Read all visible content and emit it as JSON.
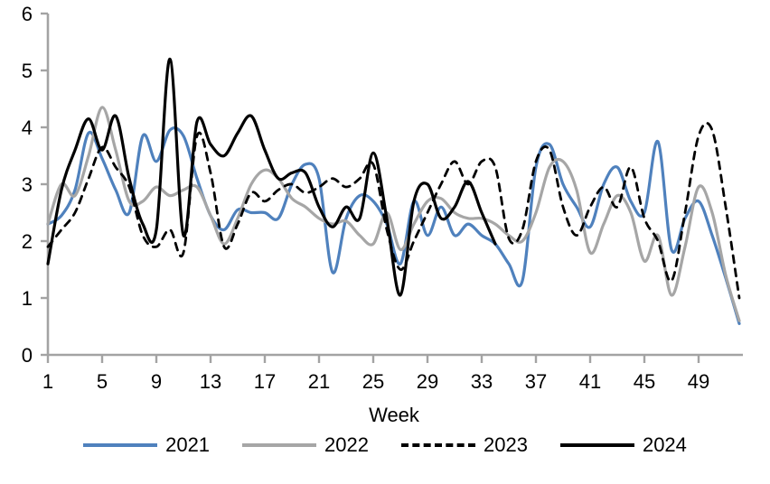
{
  "chart_data": {
    "type": "line",
    "title": "",
    "xlabel": "Week",
    "ylabel": "",
    "xlim": [
      1,
      52
    ],
    "ylim": [
      0,
      6
    ],
    "x_ticks": [
      1,
      5,
      9,
      13,
      17,
      21,
      25,
      29,
      33,
      37,
      41,
      45,
      49
    ],
    "y_ticks": [
      0,
      1,
      2,
      3,
      4,
      5,
      6
    ],
    "grid": false,
    "legend_position": "bottom",
    "axis_color": "#a3a3a3",
    "text_color": "#000000",
    "x_unit": "week number, weekly values; series values start at week 1",
    "series": [
      {
        "name": "2021",
        "color": "#4f81bd",
        "style": "solid",
        "values": [
          2.3,
          2.45,
          2.9,
          3.9,
          3.45,
          2.9,
          2.5,
          3.85,
          3.4,
          3.95,
          3.85,
          3.1,
          2.45,
          2.2,
          2.55,
          2.5,
          2.5,
          2.4,
          3.0,
          3.35,
          3.1,
          1.45,
          2.4,
          2.8,
          2.7,
          2.3,
          1.6,
          2.7,
          2.1,
          2.6,
          2.1,
          2.3,
          2.1,
          1.95,
          1.6,
          1.3,
          3.3,
          3.7,
          3.0,
          2.6,
          2.25,
          3.0,
          3.3,
          2.7,
          2.5,
          3.75,
          1.85,
          2.4,
          2.7,
          2.1,
          1.35,
          0.55
        ]
      },
      {
        "name": "2022",
        "color": "#a6a6a6",
        "style": "solid",
        "values": [
          2.3,
          3.0,
          2.8,
          3.5,
          4.35,
          3.6,
          2.7,
          2.7,
          2.95,
          2.8,
          2.9,
          2.95,
          2.45,
          1.95,
          2.4,
          3.0,
          3.25,
          3.1,
          2.75,
          2.6,
          2.4,
          2.3,
          2.35,
          2.1,
          1.95,
          2.5,
          1.85,
          2.3,
          2.7,
          2.75,
          2.5,
          2.4,
          2.4,
          2.3,
          2.1,
          2.0,
          2.5,
          3.3,
          3.4,
          2.9,
          1.8,
          2.3,
          2.8,
          2.5,
          1.65,
          2.1,
          1.05,
          1.9,
          2.95,
          2.5,
          1.4,
          0.6
        ]
      },
      {
        "name": "2023",
        "color": "#000000",
        "style": "dashed",
        "values": [
          1.9,
          2.2,
          2.5,
          3.1,
          3.65,
          3.3,
          2.95,
          2.1,
          1.9,
          2.2,
          1.8,
          3.85,
          3.2,
          1.9,
          2.3,
          2.85,
          2.7,
          2.9,
          3.0,
          2.85,
          2.95,
          3.1,
          2.95,
          3.1,
          3.35,
          2.2,
          1.5,
          2.0,
          2.5,
          3.0,
          3.4,
          3.0,
          3.4,
          3.3,
          2.05,
          2.2,
          3.4,
          3.6,
          2.6,
          2.1,
          2.6,
          2.95,
          2.6,
          3.3,
          2.4,
          2.0,
          1.3,
          2.5,
          3.85,
          3.95,
          2.6,
          1.0
        ]
      },
      {
        "name": "2024",
        "color": "#000000",
        "style": "solid",
        "values": [
          1.6,
          2.9,
          3.6,
          4.15,
          3.6,
          4.2,
          3.1,
          2.3,
          2.2,
          5.2,
          2.1,
          4.1,
          3.7,
          3.5,
          3.9,
          4.2,
          3.6,
          3.1,
          3.2,
          3.2,
          2.6,
          2.25,
          2.6,
          2.4,
          3.55,
          2.4,
          1.05,
          2.7,
          3.0,
          2.4,
          2.6,
          3.05,
          2.5,
          1.95
        ]
      }
    ]
  }
}
